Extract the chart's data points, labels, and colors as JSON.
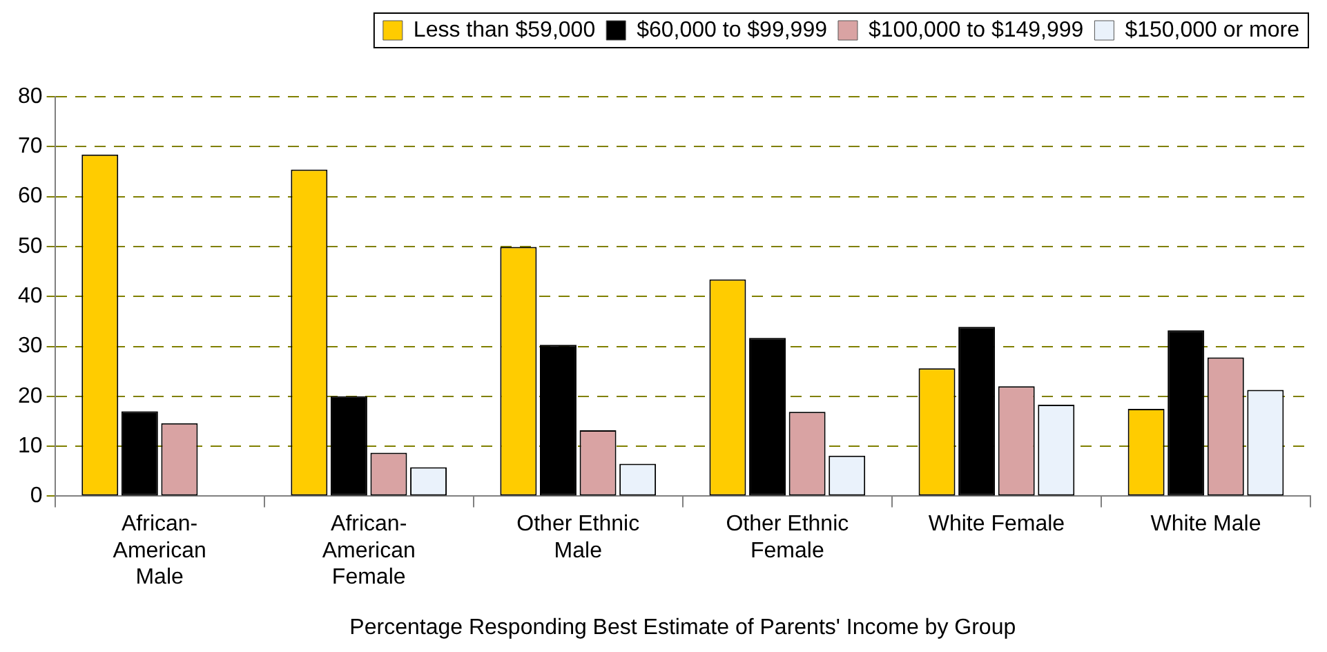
{
  "chart_data": {
    "type": "bar",
    "xlabel": "Percentage Responding Best Estimate of Parents' Income by Group",
    "categories": [
      "African-American Male",
      "African-American Female",
      "Other Ethnic Male",
      "Other Ethnic Female",
      "White Female",
      "White Male"
    ],
    "series": [
      {
        "name": "Less than $59,000",
        "color": "#ffcc00",
        "values": [
          68.4,
          65.4,
          49.9,
          43.4,
          25.6,
          17.5
        ]
      },
      {
        "name": "$60,000 to $99,999",
        "color": "#000000",
        "values": [
          17,
          20,
          30.3,
          31.7,
          33.9,
          33.2
        ]
      },
      {
        "name": "$100,000 to $149,999",
        "color": "#d9a3a3",
        "values": [
          14.6,
          8.7,
          13.2,
          16.9,
          22,
          27.8
        ]
      },
      {
        "name": "$150,000 or more",
        "color": "#eaf2fb",
        "values": [
          null,
          5.8,
          6.5,
          8.1,
          18.3,
          21.3
        ]
      }
    ],
    "ylim": [
      0,
      80
    ],
    "yticks": [
      0,
      10,
      20,
      30,
      40,
      50,
      60,
      70,
      80
    ],
    "grid": "y",
    "legend": "top right"
  }
}
